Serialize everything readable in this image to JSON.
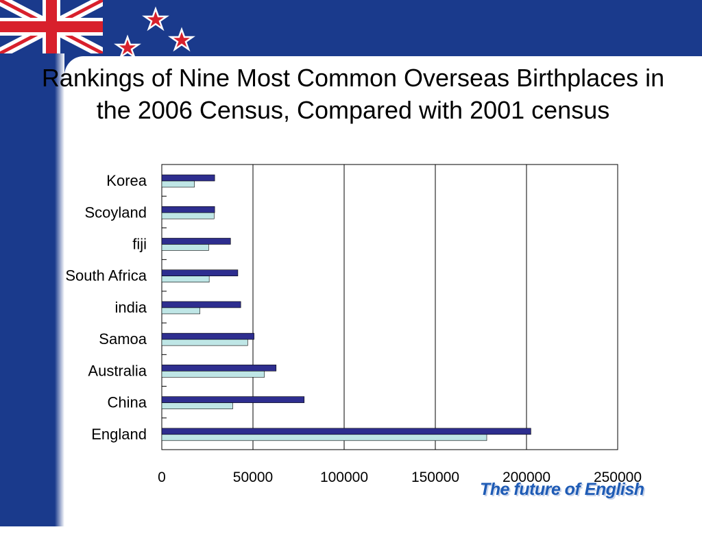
{
  "slide": {
    "title": "Rankings of Nine Most Common Overseas Birthplaces in the 2006 Census, Compared with 2001 census",
    "brand_text": "The future of English"
  },
  "colors": {
    "background_blue": "#1a3a8c",
    "series_2006": "#2e2e8f",
    "series_2001": "#bfe6e6",
    "brand_text": "#1e5bb5"
  },
  "chart_data": {
    "type": "bar",
    "orientation": "horizontal",
    "title": "Rankings of Nine Most Common Overseas Birthplaces in the 2006 Census, Compared with 2001 census",
    "categories": [
      "Korea",
      "Scoyland",
      "fiji",
      "South Africa",
      "india",
      "Samoa",
      "Australia",
      "China",
      "England"
    ],
    "series": [
      {
        "values": [
          29000,
          29000,
          37700,
          41700,
          43300,
          50600,
          62700,
          78100,
          202400
        ]
      },
      {
        "values": [
          17900,
          28700,
          25700,
          26000,
          20900,
          47100,
          56300,
          38900,
          178200
        ]
      }
    ],
    "xlim": [
      0,
      250000
    ],
    "xticks": [
      "0",
      "50000",
      "100000",
      "150000",
      "200000",
      "250000"
    ],
    "xlabel": "",
    "ylabel": "",
    "grid": "vertical",
    "legend": "none"
  }
}
